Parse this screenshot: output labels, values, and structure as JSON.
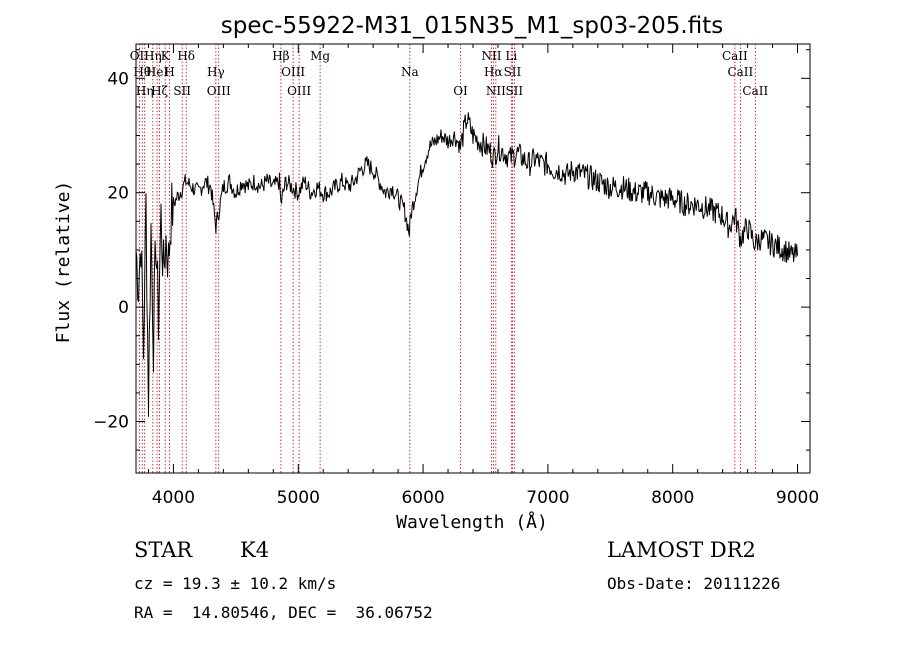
{
  "chart_data": {
    "type": "line",
    "title": "spec-55922-M31_015N35_M1_sp03-205.fits",
    "xlabel": "Wavelength (Å)",
    "ylabel": "Flux (relative)",
    "xlim": [
      3700,
      9100
    ],
    "ylim": [
      -29,
      46
    ],
    "xticks": [
      4000,
      5000,
      6000,
      7000,
      8000,
      9000
    ],
    "xtick_labels": [
      "4000",
      "5000",
      "6000",
      "7000",
      "8000",
      "9000"
    ],
    "yticks": [
      -20,
      0,
      20,
      40
    ],
    "ytick_labels": [
      "−20",
      "0",
      "20",
      "40"
    ],
    "grid": false,
    "series": [
      {
        "name": "spectrum",
        "x": [
          3700,
          3720,
          3740,
          3760,
          3780,
          3800,
          3820,
          3840,
          3860,
          3880,
          3900,
          3920,
          3940,
          3960,
          3980,
          4000,
          4050,
          4100,
          4150,
          4200,
          4250,
          4300,
          4340,
          4400,
          4450,
          4500,
          4550,
          4600,
          4650,
          4700,
          4750,
          4800,
          4850,
          4861,
          4900,
          4950,
          5000,
          5050,
          5100,
          5150,
          5200,
          5250,
          5300,
          5350,
          5400,
          5450,
          5500,
          5550,
          5600,
          5650,
          5700,
          5750,
          5800,
          5850,
          5890,
          5900,
          5950,
          6000,
          6050,
          6100,
          6150,
          6200,
          6250,
          6300,
          6350,
          6400,
          6450,
          6500,
          6550,
          6563,
          6600,
          6650,
          6700,
          6750,
          6800,
          6850,
          6900,
          6950,
          7000,
          7050,
          7100,
          7150,
          7200,
          7300,
          7400,
          7500,
          7600,
          7700,
          7800,
          7900,
          8000,
          8100,
          8200,
          8300,
          8400,
          8450,
          8500,
          8542,
          8600,
          8662,
          8700,
          8800,
          8900,
          8950,
          9000
        ],
        "y": [
          10,
          4,
          12,
          -8,
          18,
          -16,
          14,
          -6,
          12,
          -2,
          16,
          6,
          12,
          8,
          16,
          18,
          20,
          22,
          21,
          20,
          22,
          21,
          14,
          21,
          22,
          20,
          22,
          21,
          22,
          21,
          22,
          21,
          22,
          18,
          22,
          21,
          20,
          22,
          20,
          21,
          20,
          20,
          21,
          22,
          21,
          22,
          24,
          25,
          24,
          22,
          20,
          21,
          19,
          17,
          13,
          16,
          21,
          25,
          28,
          29,
          30,
          29,
          30,
          28,
          33,
          30,
          29,
          28,
          27,
          26,
          28,
          27,
          26,
          27,
          26,
          25,
          26,
          25,
          25,
          24,
          24,
          23,
          24,
          23,
          22,
          21,
          21,
          20,
          20,
          19,
          19,
          18,
          18,
          17,
          16,
          14,
          16,
          12,
          14,
          11,
          12,
          11,
          10,
          9,
          9
        ]
      }
    ],
    "spectral_lines": [
      {
        "x": 3727,
        "label": "OII"
      },
      {
        "x": 3750,
        "label": "Hθ"
      },
      {
        "x": 3770,
        "label": "Hη"
      },
      {
        "x": 3835,
        "label": "Hη"
      },
      {
        "x": 3869,
        "label": "HeI"
      },
      {
        "x": 3889,
        "label": "Hζ"
      },
      {
        "x": 3934,
        "label": "K"
      },
      {
        "x": 3969,
        "label": "H"
      },
      {
        "x": 4070,
        "label": "SII"
      },
      {
        "x": 4102,
        "label": "Hδ"
      },
      {
        "x": 4340,
        "label": "Hγ"
      },
      {
        "x": 4363,
        "label": "OIII"
      },
      {
        "x": 4861,
        "label": "Hβ"
      },
      {
        "x": 4959,
        "label": "OIII"
      },
      {
        "x": 5007,
        "label": "OIII"
      },
      {
        "x": 5175,
        "label": "Mg"
      },
      {
        "x": 5894,
        "label": "Na"
      },
      {
        "x": 6300,
        "label": "OI"
      },
      {
        "x": 6548,
        "label": "NII"
      },
      {
        "x": 6563,
        "label": "Hα"
      },
      {
        "x": 6583,
        "label": "NII"
      },
      {
        "x": 6707,
        "label": "Li"
      },
      {
        "x": 6716,
        "label": "SII"
      },
      {
        "x": 6731,
        "label": "SII"
      },
      {
        "x": 8498,
        "label": "CaII"
      },
      {
        "x": 8542,
        "label": "CaII"
      },
      {
        "x": 8662,
        "label": "CaII"
      }
    ]
  },
  "info": {
    "star_class": "STAR",
    "subclass": "K4",
    "survey": "LAMOST DR2",
    "cz": "cz = 19.3 ± 10.2 km/s",
    "obs_date": "Obs-Date: 20111226",
    "coords": "RA =  14.80546, DEC =  36.06752"
  },
  "colors": {
    "spectrum": "#000000",
    "line_markers": "#cc0000"
  }
}
